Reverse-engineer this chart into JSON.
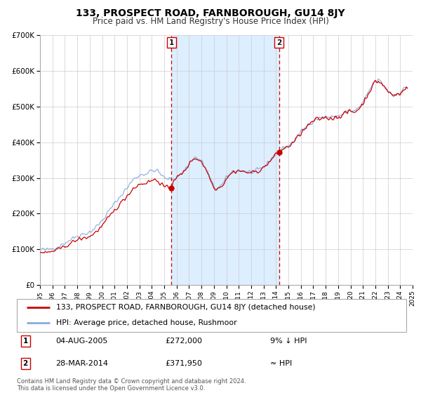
{
  "title": "133, PROSPECT ROAD, FARNBOROUGH, GU14 8JY",
  "subtitle": "Price paid vs. HM Land Registry's House Price Index (HPI)",
  "legend_line1": "133, PROSPECT ROAD, FARNBOROUGH, GU14 8JY (detached house)",
  "legend_line2": "HPI: Average price, detached house, Rushmoor",
  "marker1_date": "04-AUG-2005",
  "marker1_price": 272000,
  "marker1_note": "9% ↓ HPI",
  "marker1_year": 2005.59,
  "marker2_date": "28-MAR-2014",
  "marker2_price": 371950,
  "marker2_note": "≈ HPI",
  "marker2_year": 2014.24,
  "price_color": "#cc0000",
  "hpi_color": "#88aadd",
  "shade_color": "#ddeeff",
  "marker_color": "#cc0000",
  "footnote": "Contains HM Land Registry data © Crown copyright and database right 2024.\nThis data is licensed under the Open Government Licence v3.0.",
  "ylim": [
    0,
    700000
  ],
  "xlim_start": 1995,
  "xlim_end": 2025,
  "yticks": [
    0,
    100000,
    200000,
    300000,
    400000,
    500000,
    600000,
    700000
  ],
  "ytick_labels": [
    "£0",
    "£100K",
    "£200K",
    "£300K",
    "£400K",
    "£500K",
    "£600K",
    "£700K"
  ],
  "xticks": [
    1995,
    1996,
    1997,
    1998,
    1999,
    2000,
    2001,
    2002,
    2003,
    2004,
    2005,
    2006,
    2007,
    2008,
    2009,
    2010,
    2011,
    2012,
    2013,
    2014,
    2015,
    2016,
    2017,
    2018,
    2019,
    2020,
    2021,
    2022,
    2023,
    2024,
    2025
  ]
}
